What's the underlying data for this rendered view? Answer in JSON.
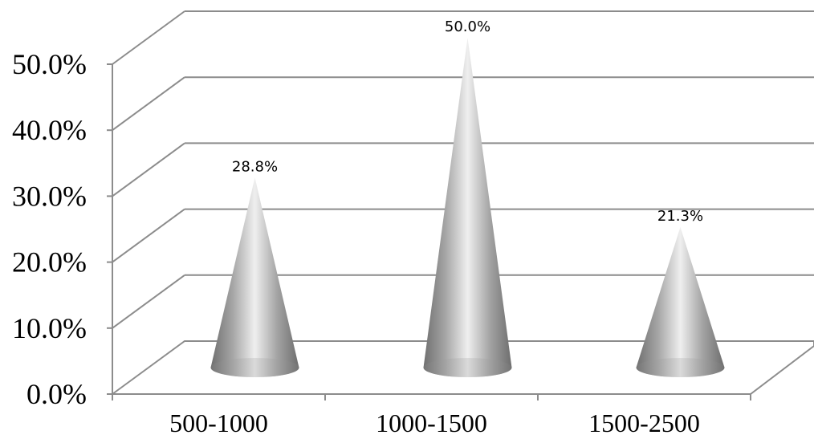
{
  "chart_data": {
    "type": "bar",
    "bar_shape": "cone",
    "view": "3d",
    "categories": [
      "500-1000",
      "1000-1500",
      "1500-2500"
    ],
    "values": [
      28.8,
      50.0,
      21.3
    ],
    "value_format": "percent_1dp",
    "data_labels": [
      "28.8%",
      "50.0%",
      "21.3%"
    ],
    "y_ticks": [
      "0.0%",
      "10.0%",
      "20.0%",
      "30.0%",
      "40.0%",
      "50.0%"
    ],
    "ylim": [
      0,
      50
    ],
    "grid": true,
    "legend": "none",
    "title": "",
    "xlabel": "",
    "ylabel": "",
    "colors": {
      "cone": "#9e9e9e",
      "grid": "#8c8c8c",
      "floor": "#8c8c8c"
    }
  }
}
